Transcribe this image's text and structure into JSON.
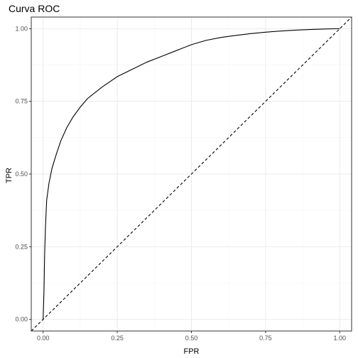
{
  "chart_data": {
    "type": "line",
    "title": "Curva ROC",
    "xlabel": "FPR",
    "ylabel": "TPR",
    "xlim": [
      -0.04,
      1.04
    ],
    "ylim": [
      -0.04,
      1.04
    ],
    "x_ticks": [
      "0.00",
      "0.25",
      "0.50",
      "0.75",
      "1.00"
    ],
    "y_ticks": [
      "0.00",
      "0.25",
      "0.50",
      "0.75",
      "1.00"
    ],
    "grid": true,
    "legend": "none",
    "colors": {
      "line": "#000000",
      "grid_major": "#ebebeb",
      "grid_minor": "#f5f5f5",
      "panel_border": "#333333"
    },
    "series": [
      {
        "style": "solid",
        "x": [
          0.0,
          0.003,
          0.005,
          0.008,
          0.012,
          0.02,
          0.03,
          0.045,
          0.06,
          0.08,
          0.1,
          0.125,
          0.15,
          0.2,
          0.25,
          0.3,
          0.35,
          0.4,
          0.45,
          0.5,
          0.55,
          0.6,
          0.65,
          0.7,
          0.75,
          0.8,
          0.85,
          0.9,
          0.95,
          1.0
        ],
        "y": [
          0.0,
          0.1,
          0.22,
          0.32,
          0.41,
          0.47,
          0.52,
          0.57,
          0.615,
          0.66,
          0.695,
          0.73,
          0.76,
          0.8,
          0.835,
          0.86,
          0.885,
          0.905,
          0.925,
          0.945,
          0.96,
          0.97,
          0.977,
          0.983,
          0.988,
          0.992,
          0.995,
          0.997,
          0.999,
          1.0
        ]
      },
      {
        "style": "dashed",
        "x": [
          -0.04,
          1.04
        ],
        "y": [
          -0.04,
          1.04
        ]
      }
    ]
  }
}
